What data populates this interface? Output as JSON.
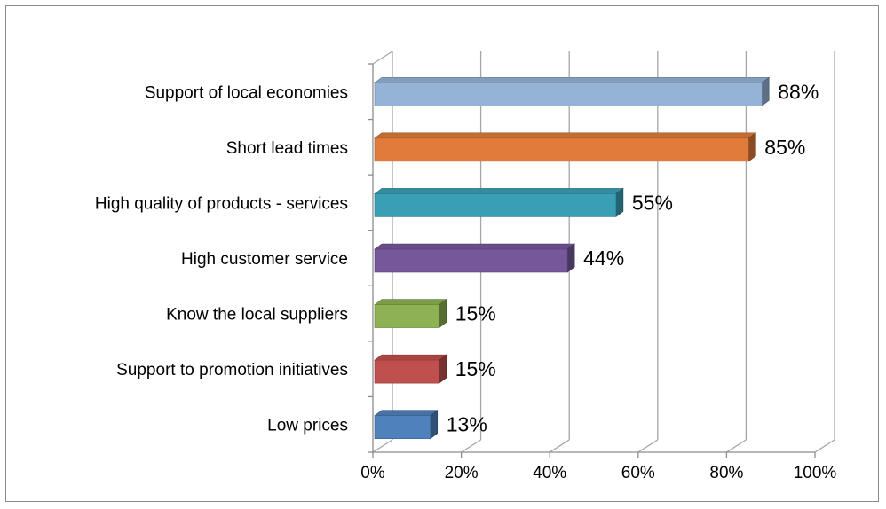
{
  "chart_data": {
    "type": "bar",
    "orientation": "horizontal",
    "categories": [
      "Support of local economies",
      "Short lead times",
      "High quality of products - services",
      "High customer service",
      "Know the local suppliers",
      "Support to promotion initiatives",
      "Low prices"
    ],
    "values": [
      88,
      85,
      55,
      44,
      15,
      15,
      13
    ],
    "value_labels": [
      "88%",
      "85%",
      "55%",
      "44%",
      "15%",
      "15%",
      "13%"
    ],
    "colors": [
      "#95b3d7",
      "#e07b39",
      "#3a9fb5",
      "#76589a",
      "#8db153",
      "#c0504d",
      "#4f81bd"
    ],
    "xlim": [
      0,
      100
    ],
    "x_ticks": [
      "0%",
      "20%",
      "40%",
      "60%",
      "80%",
      "100%"
    ],
    "grid": true,
    "legend": "none",
    "style": "3d"
  }
}
